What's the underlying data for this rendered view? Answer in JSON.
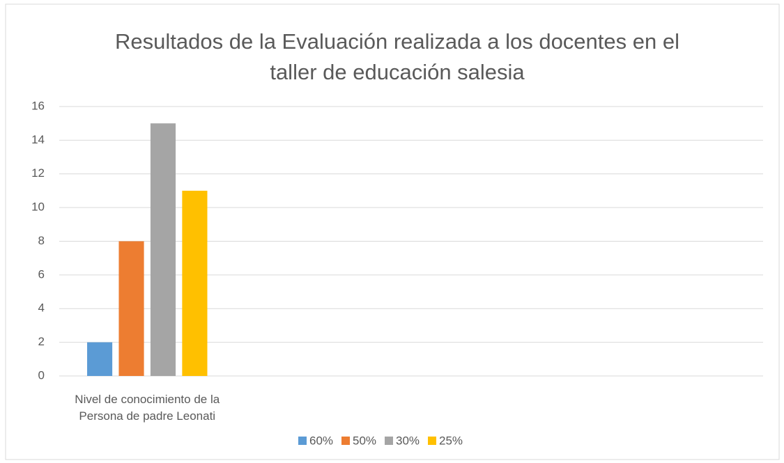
{
  "chart_data": {
    "type": "bar",
    "title": "Resultados de la Evaluación realizada a los docentes en el taller de educación salesia",
    "categories": [
      "Nivel de conocimiento de la Persona de padre Leonati",
      null,
      null,
      null
    ],
    "series": [
      {
        "name": "60%",
        "color": "#5b9bd5",
        "values": [
          2,
          null,
          null,
          null
        ]
      },
      {
        "name": "50%",
        "color": "#ed7d31",
        "values": [
          8,
          null,
          null,
          null
        ]
      },
      {
        "name": "30%",
        "color": "#a5a5a5",
        "values": [
          15,
          null,
          null,
          null
        ]
      },
      {
        "name": "25%",
        "color": "#ffc000",
        "values": [
          11,
          null,
          null,
          null
        ]
      }
    ],
    "ylim": [
      0,
      16
    ],
    "yticks": [
      0,
      2,
      4,
      6,
      8,
      10,
      12,
      14,
      16
    ],
    "grid": true,
    "legend": "bottom"
  }
}
